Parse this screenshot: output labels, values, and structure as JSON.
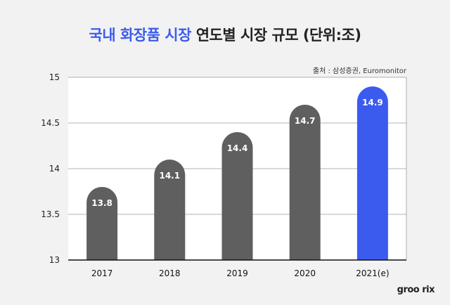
{
  "title": {
    "highlight": "국내 화장품 시장",
    "rest": "연도별 시장 규모 (단위:조)"
  },
  "source": "출처 : 삼성증권, Euromonitor",
  "watermark": "groo rix",
  "colors": {
    "bar_default": "#5f5f5f",
    "bar_highlight": "#3b5bef",
    "title_highlight": "#3b5bef",
    "plot_background": "#ffffff",
    "page_background": "#f2f2f2"
  },
  "chart_data": {
    "type": "bar",
    "categories": [
      "2017",
      "2018",
      "2019",
      "2020",
      "2021(e)"
    ],
    "values": [
      13.8,
      14.1,
      14.4,
      14.7,
      14.9
    ],
    "value_labels": [
      "13.8",
      "14.1",
      "14.4",
      "14.7",
      "14.9"
    ],
    "highlight_index": 4,
    "ylim": [
      13,
      15
    ],
    "yticks": [
      13,
      13.5,
      14,
      14.5,
      15
    ],
    "ytick_labels": [
      "13",
      "13.5",
      "14",
      "14.5",
      "15"
    ],
    "grid": true,
    "xlabel": "",
    "ylabel": ""
  }
}
